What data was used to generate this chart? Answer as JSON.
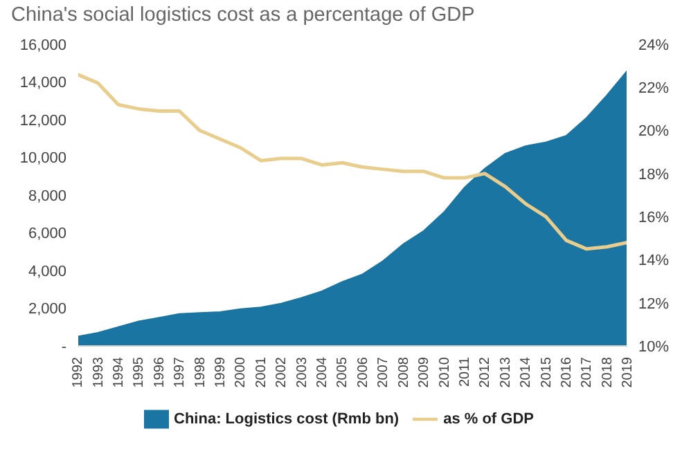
{
  "chart_data": {
    "type": "area",
    "title": "China's social logistics cost as a percentage of GDP",
    "categories": [
      "1992",
      "1993",
      "1994",
      "1995",
      "1996",
      "1997",
      "1998",
      "1999",
      "2000",
      "2001",
      "2002",
      "2003",
      "2004",
      "2005",
      "2006",
      "2007",
      "2008",
      "2009",
      "2010",
      "2011",
      "2012",
      "2013",
      "2014",
      "2015",
      "2016",
      "2017",
      "2018",
      "2019"
    ],
    "series": [
      {
        "name": "China: Logistics cost (Rmb bn)",
        "color": "#1b75a2",
        "values": [
          500,
          700,
          1000,
          1300,
          1500,
          1700,
          1750,
          1800,
          1950,
          2050,
          2250,
          2550,
          2900,
          3400,
          3800,
          4500,
          5400,
          6100,
          7100,
          8400,
          9400,
          10200,
          10600,
          10800,
          11150,
          12100,
          13300,
          14600
        ]
      },
      {
        "name": "as % of GDP",
        "type": "line",
        "axis": "y2",
        "color": "#e8cd8c",
        "values": [
          22.6,
          22.2,
          21.2,
          21.0,
          20.9,
          20.9,
          20.0,
          19.6,
          19.2,
          18.6,
          18.7,
          18.7,
          18.4,
          18.5,
          18.3,
          18.2,
          18.1,
          18.1,
          17.8,
          17.8,
          18.0,
          17.4,
          16.6,
          16.0,
          14.9,
          14.5,
          14.6,
          14.8
        ]
      }
    ],
    "ylim": [
      0,
      16000
    ],
    "yticks": [
      {
        "value": 0,
        "label": "-"
      },
      {
        "value": 2000,
        "label": "2,000"
      },
      {
        "value": 4000,
        "label": "4,000"
      },
      {
        "value": 6000,
        "label": "6,000"
      },
      {
        "value": 8000,
        "label": "8,000"
      },
      {
        "value": 10000,
        "label": "10,000"
      },
      {
        "value": 12000,
        "label": "12,000"
      },
      {
        "value": 14000,
        "label": "14,000"
      },
      {
        "value": 16000,
        "label": "16,000"
      }
    ],
    "y2lim": [
      10,
      24
    ],
    "y2ticks": [
      {
        "value": 10,
        "label": "10%"
      },
      {
        "value": 12,
        "label": "12%"
      },
      {
        "value": 14,
        "label": "14%"
      },
      {
        "value": 16,
        "label": "16%"
      },
      {
        "value": 18,
        "label": "18%"
      },
      {
        "value": 20,
        "label": "20%"
      },
      {
        "value": 22,
        "label": "22%"
      },
      {
        "value": 24,
        "label": "24%"
      }
    ],
    "grid": false,
    "legend": "bottom",
    "marker": "none"
  }
}
